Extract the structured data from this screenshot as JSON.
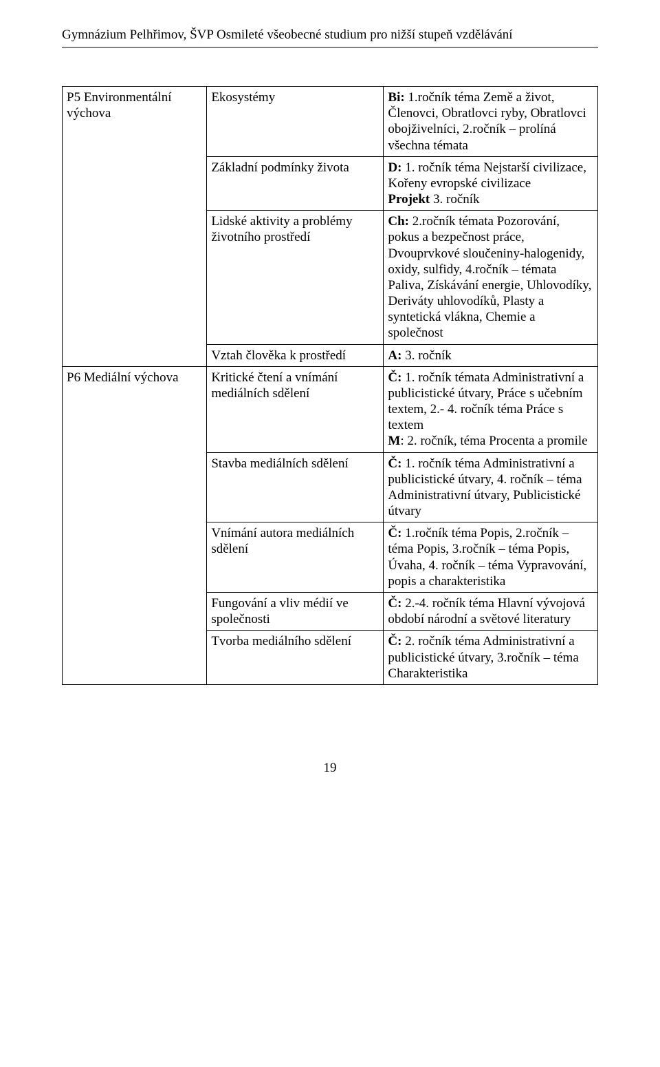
{
  "header": "Gymnázium Pelhřimov, ŠVP Osmileté všeobecné studium pro nižší stupeň vzdělávání",
  "row_p5": {
    "label": "P5 Environmentální výchova",
    "r1": {
      "mid": "Ekosystémy",
      "right_b": "Bi:",
      "right": " 1.ročník téma Země a život, Členovci, Obratlovci ryby, Obratlovci obojživelníci, 2.ročník – prolíná všechna témata"
    },
    "r2": {
      "mid": "Základní podmínky života",
      "right_b": "D:",
      "right_a": " 1. ročník téma Nejstarší civilizace, Kořeny evropské civilizace",
      "right_proj_b": "Projekt",
      "right_proj": " 3. ročník"
    },
    "r3": {
      "mid": "Lidské aktivity a problémy životního prostředí",
      "right_b": "Ch:",
      "right": " 2.ročník témata Pozorování, pokus a bezpečnost práce, Dvouprvkové sloučeniny-halogenidy, oxidy, sulfidy, 4.ročník – témata Paliva, Získávání energie, Uhlovodíky, Deriváty uhlovodíků, Plasty a syntetická vlákna, Chemie a společnost"
    },
    "r4": {
      "mid": "Vztah člověka k prostředí",
      "right_b": "A:",
      "right": " 3. ročník"
    }
  },
  "row_p6": {
    "label": "P6 Mediální výchova",
    "r1": {
      "mid": "Kritické čtení a vnímání mediálních sdělení",
      "right_b1": "Č:",
      "right_1": " 1. ročník témata Administrativní a publicistické útvary, Práce s učebním textem, 2.- 4. ročník téma Práce s textem",
      "right_b2": "M",
      "right_2": ": 2. ročník, téma Procenta a promile"
    },
    "r2": {
      "mid": "Stavba mediálních sdělení",
      "right_b": "Č:",
      "right": " 1. ročník téma Administrativní a publicistické útvary, 4. ročník – téma Administrativní útvary, Publicistické útvary"
    },
    "r3": {
      "mid": "Vnímání autora mediálních sdělení",
      "right_b": "Č:",
      "right": " 1.ročník téma Popis, 2.ročník – téma Popis, 3.ročník – téma Popis, Úvaha, 4. ročník – téma Vypravování, popis a charakteristika"
    },
    "r4": {
      "mid": "Fungování a vliv médií ve společnosti",
      "right_b": "Č:",
      "right": " 2.-4. ročník téma Hlavní vývojová období národní a světové literatury"
    },
    "r5": {
      "mid": "Tvorba mediálního sdělení",
      "right_b": "Č:",
      "right": " 2. ročník téma Administrativní a publicistické útvary, 3.ročník – téma Charakteristika"
    }
  },
  "page_number": "19"
}
